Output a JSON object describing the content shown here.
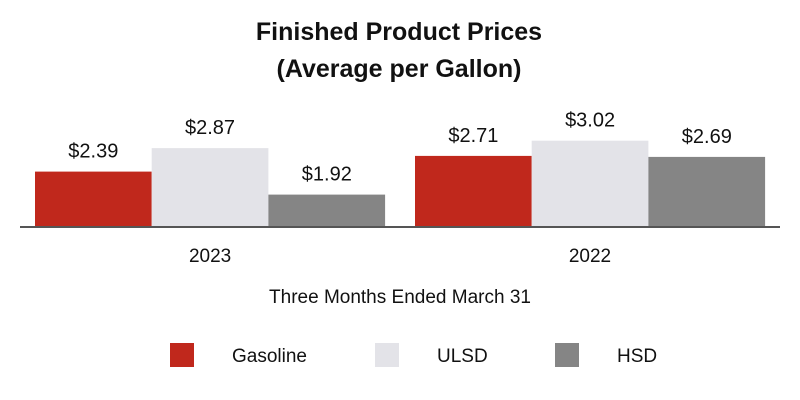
{
  "chart_data": {
    "type": "bar",
    "title_line1": "Finished Product Prices",
    "title_line2": "(Average per Gallon)",
    "xlabel": "Three Months Ended March 31",
    "ylabel": "",
    "categories": [
      "2023",
      "2022"
    ],
    "series": [
      {
        "name": "Gasoline",
        "values": [
          2.39,
          2.71
        ],
        "labels": [
          "$2.39",
          "$2.71"
        ],
        "color": "#c0281c"
      },
      {
        "name": "ULSD",
        "values": [
          2.87,
          3.02
        ],
        "labels": [
          "$2.87",
          "$3.02"
        ],
        "color": "#e3e3e8"
      },
      {
        "name": "HSD",
        "values": [
          1.92,
          2.69
        ],
        "labels": [
          "$1.92",
          "$2.69"
        ],
        "color": "#858585"
      }
    ],
    "ylim": [
      1.28,
      3.6
    ],
    "grid": false,
    "legend": "bottom"
  }
}
